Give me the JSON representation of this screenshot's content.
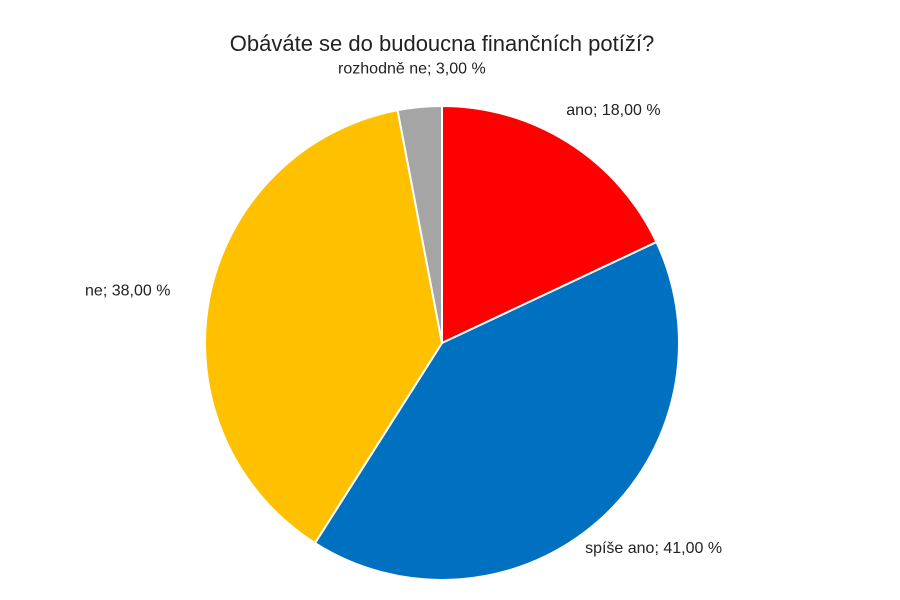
{
  "chart_data": {
    "type": "pie",
    "title": "Obáváte se do budoucna finančních potíží?",
    "categories": [
      "ano",
      "spíše ano",
      "ne",
      "rozhodně ne"
    ],
    "values": [
      18,
      41,
      38,
      3
    ],
    "value_labels": [
      "18,00 %",
      "41,00 %",
      "38,00 %",
      "3,00 %"
    ],
    "label_separator": "; ",
    "colors": [
      "#ff0000",
      "#0070c0",
      "#ffc000",
      "#a5a5a5"
    ]
  }
}
